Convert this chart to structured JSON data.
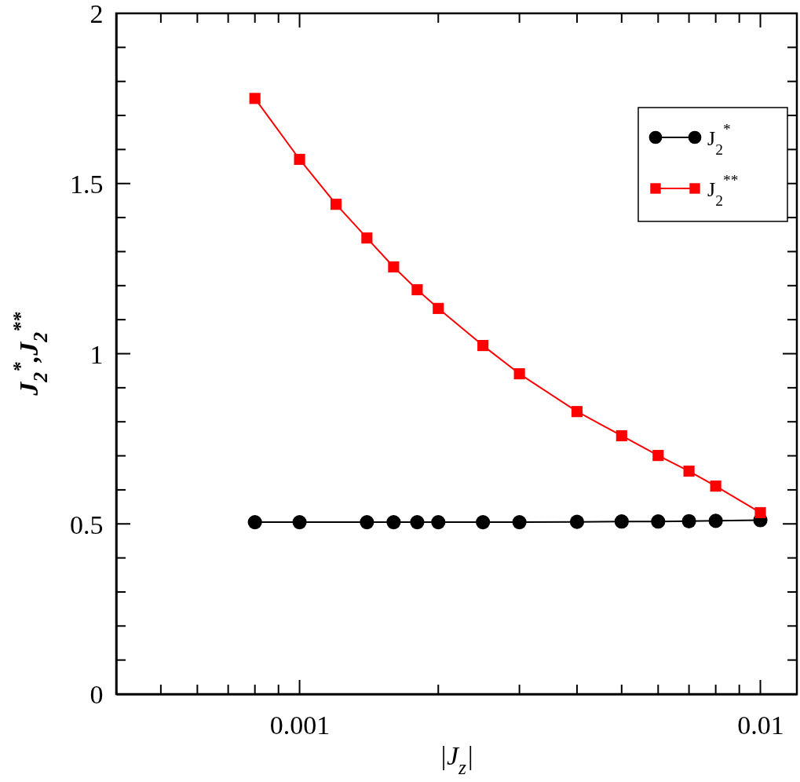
{
  "chart_data": {
    "type": "line",
    "xlabel": "|J$_{z}$|",
    "ylabel": "J$_{2}$$^{*}$,J$_{2}$$^{**}$",
    "log": "x",
    "xlim": [
      0.0004,
      0.012
    ],
    "xticks": [
      {
        "value": 0.0005,
        "label": null
      },
      {
        "value": 0.0006,
        "label": null
      },
      {
        "value": 0.0007,
        "label": null
      },
      {
        "value": 0.0008,
        "label": null
      },
      {
        "value": 0.0009,
        "label": null
      },
      0.001,
      {
        "value": 0.002,
        "label": null
      },
      {
        "value": 0.003,
        "label": null
      },
      {
        "value": 0.004,
        "label": null
      },
      {
        "value": 0.005,
        "label": null
      },
      {
        "value": 0.006,
        "label": null
      },
      {
        "value": 0.007,
        "label": null
      },
      {
        "value": 0.008,
        "label": null
      },
      {
        "value": 0.009,
        "label": null
      },
      0.01
    ],
    "ylim": [
      0,
      2
    ],
    "yticks": [
      0,
      {
        "value": 0.1,
        "label": null
      },
      {
        "value": 0.2,
        "label": null
      },
      {
        "value": 0.3,
        "label": null
      },
      {
        "value": 0.4,
        "label": null
      },
      0.5,
      {
        "value": 0.6,
        "label": null
      },
      {
        "value": 0.7,
        "label": null
      },
      {
        "value": 0.8,
        "label": null
      },
      {
        "value": 0.9,
        "label": null
      },
      1,
      {
        "value": 1.1,
        "label": null
      },
      {
        "value": 1.2,
        "label": null
      },
      {
        "value": 1.3,
        "label": null
      },
      {
        "value": 1.4,
        "label": null
      },
      1.5,
      {
        "value": 1.6,
        "label": null
      },
      {
        "value": 1.7,
        "label": null
      },
      {
        "value": 1.8,
        "label": null
      },
      {
        "value": 1.9,
        "label": null
      },
      2
    ],
    "x": [
      0.0008,
      0.001,
      0.0014,
      0.0016,
      0.0018,
      0.002,
      0.0025,
      0.003,
      0.004,
      0.005,
      0.006,
      0.007,
      0.008,
      0.01
    ],
    "legend": "top right",
    "line_style": "solid",
    "series": [
      {
        "name": "J$_{2}$$^{*}$",
        "color": "#000000",
        "marker": "circle",
        "values": [
          0.505,
          0.505,
          0.505,
          0.505,
          0.505,
          0.505,
          0.505,
          0.505,
          0.506,
          0.507,
          0.507,
          0.508,
          0.509,
          0.511
        ]
      },
      {
        "name": "J$_{2}$$^{**}$",
        "color": "#ff0000",
        "marker": "square",
        "x": [
          0.0008,
          0.001,
          0.0012,
          0.0014,
          0.0016,
          0.0018,
          0.002,
          0.0025,
          0.003,
          0.004,
          0.005,
          0.006,
          0.007,
          0.008,
          0.01
        ],
        "values": [
          1.75,
          1.571,
          1.439,
          1.34,
          1.255,
          1.188,
          1.133,
          1.024,
          0.941,
          0.83,
          0.759,
          0.701,
          0.655,
          0.611,
          0.533
        ]
      }
    ]
  }
}
